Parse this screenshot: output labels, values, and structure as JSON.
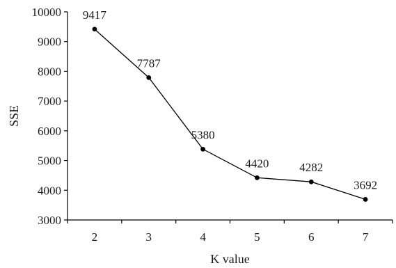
{
  "chart_data": {
    "type": "line",
    "title": "",
    "xlabel": "K value",
    "ylabel": "SSE",
    "x": [
      2,
      3,
      4,
      5,
      6,
      7
    ],
    "series": [
      {
        "values": [
          9417,
          7787,
          5380,
          4420,
          4282,
          3692
        ]
      }
    ],
    "data_labels": [
      "9417",
      "7787",
      "5380",
      "4420",
      "4282",
      "3692"
    ],
    "ylim": [
      3000,
      10000
    ],
    "yticks": [
      3000,
      4000,
      5000,
      6000,
      7000,
      8000,
      9000,
      10000
    ],
    "xticks": [
      2,
      3,
      4,
      5,
      6,
      7
    ],
    "grid": false,
    "legend": "none",
    "colors": {
      "line": "#000000",
      "marker": "#000000"
    }
  }
}
